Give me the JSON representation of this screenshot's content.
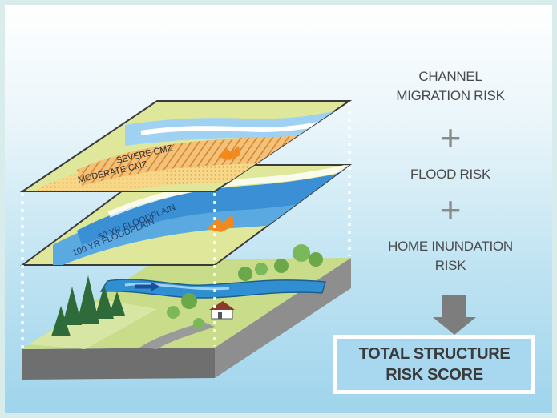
{
  "risks": {
    "channel_migration": "CHANNEL\nMIGRATION RISK",
    "flood": "FLOOD RISK",
    "home_inundation": "HOME INUNDATION\nRISK",
    "plus_symbol": "+"
  },
  "result": {
    "label": "TOTAL STRUCTURE\nRISK SCORE"
  },
  "layers": {
    "severe_cmz": "SEVERE CMZ",
    "moderate_cmz": "MODERATE CMZ",
    "floodplain_50yr": "50 YR FLOODPLAIN",
    "floodplain_100yr": "100 YR FLOODPLAIN"
  },
  "colors": {
    "layer_green": "#dfe89a",
    "river_blue": "#2f8fd0",
    "floodplain_blue": "#5aa9e0",
    "cmz_orange": "#e99a3a",
    "house_orange": "#f08a1f",
    "arrow_gray": "#7d7d7d",
    "result_blue": "#a7d8ef"
  }
}
